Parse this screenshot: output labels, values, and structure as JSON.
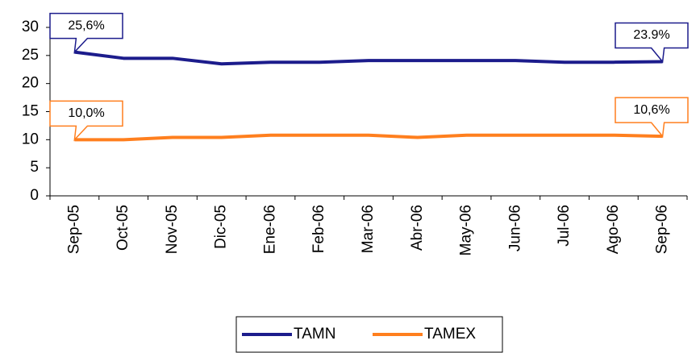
{
  "chart_data": {
    "type": "line",
    "categories": [
      "Sep-05",
      "Oct-05",
      "Nov-05",
      "Dic-05",
      "Ene-06",
      "Feb-06",
      "Mar-06",
      "Abr-06",
      "May-06",
      "Jun-06",
      "Jul-06",
      "Ago-06",
      "Sep-06"
    ],
    "series": [
      {
        "name": "TAMN",
        "color": "#1c1c8c",
        "values": [
          25.6,
          24.5,
          24.5,
          23.5,
          23.8,
          23.8,
          24.1,
          24.1,
          24.1,
          24.1,
          23.8,
          23.8,
          23.9
        ],
        "value_labels": [
          "25,6%",
          null,
          null,
          null,
          null,
          null,
          null,
          null,
          null,
          null,
          null,
          null,
          "23.9%"
        ]
      },
      {
        "name": "TAMEX",
        "color": "#ff7f1e",
        "values": [
          10.0,
          10.0,
          10.4,
          10.4,
          10.8,
          10.8,
          10.8,
          10.4,
          10.8,
          10.8,
          10.8,
          10.8,
          10.6
        ],
        "value_labels": [
          "10,0%",
          null,
          null,
          null,
          null,
          null,
          null,
          null,
          null,
          null,
          null,
          null,
          "10,6%"
        ]
      }
    ],
    "ylim": [
      0,
      30
    ],
    "yticks": [
      0,
      5,
      10,
      15,
      20,
      25,
      30
    ],
    "legend": "bottom"
  }
}
